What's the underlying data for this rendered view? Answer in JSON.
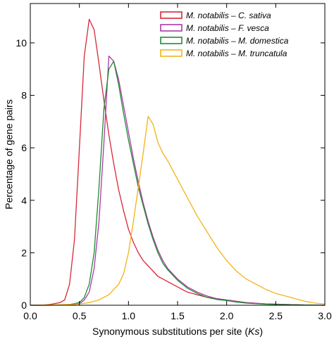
{
  "chart_data": {
    "type": "line",
    "title": "",
    "xlabel": "Synonymous substitutions per site (Ks)",
    "ylabel": "Percentage of gene pairs",
    "xlim": [
      0.0,
      3.0
    ],
    "ylim": [
      0,
      11.5
    ],
    "xticks": [
      "0.0",
      "0.5",
      "1.0",
      "1.5",
      "2.0",
      "2.5",
      "3.0"
    ],
    "yticks": [
      "0",
      "2",
      "4",
      "6",
      "8",
      "10"
    ],
    "grid": false,
    "legend_position": "top-right",
    "series": [
      {
        "name": "M. notabilis – C. sativa",
        "color": "#d62839",
        "x": [
          0.0,
          0.1,
          0.2,
          0.3,
          0.35,
          0.4,
          0.45,
          0.5,
          0.55,
          0.6,
          0.65,
          0.7,
          0.75,
          0.8,
          0.85,
          0.9,
          0.95,
          1.0,
          1.05,
          1.1,
          1.15,
          1.2,
          1.25,
          1.3,
          1.35,
          1.4,
          1.5,
          1.6,
          1.7,
          1.8,
          1.9,
          2.0,
          2.2,
          2.4,
          2.6,
          2.8,
          3.0
        ],
        "values": [
          0.0,
          0.0,
          0.03,
          0.1,
          0.2,
          0.8,
          2.5,
          6.0,
          9.5,
          10.9,
          10.5,
          9.2,
          7.8,
          6.5,
          5.4,
          4.4,
          3.6,
          2.9,
          2.4,
          2.0,
          1.7,
          1.5,
          1.3,
          1.1,
          1.0,
          0.9,
          0.7,
          0.5,
          0.4,
          0.3,
          0.25,
          0.2,
          0.1,
          0.05,
          0.03,
          0.01,
          0.0
        ]
      },
      {
        "name": "M. notabilis – F. vesca",
        "color": "#a83aa8",
        "x": [
          0.0,
          0.2,
          0.4,
          0.5,
          0.55,
          0.6,
          0.65,
          0.7,
          0.75,
          0.8,
          0.85,
          0.9,
          0.95,
          1.0,
          1.05,
          1.1,
          1.15,
          1.2,
          1.25,
          1.3,
          1.35,
          1.4,
          1.45,
          1.5,
          1.6,
          1.7,
          1.8,
          1.9,
          2.0,
          2.1,
          2.2,
          2.4,
          2.6,
          2.8,
          3.0
        ],
        "values": [
          0.0,
          0.0,
          0.02,
          0.05,
          0.2,
          0.5,
          1.4,
          3.2,
          6.2,
          9.5,
          9.3,
          8.6,
          7.6,
          6.6,
          5.6,
          4.7,
          3.9,
          3.2,
          2.6,
          2.1,
          1.7,
          1.4,
          1.2,
          1.0,
          0.7,
          0.5,
          0.35,
          0.25,
          0.2,
          0.15,
          0.1,
          0.05,
          0.03,
          0.01,
          0.0
        ]
      },
      {
        "name": "M. notabilis – M. domestica",
        "color": "#1f8c2e",
        "x": [
          0.0,
          0.2,
          0.4,
          0.5,
          0.55,
          0.6,
          0.65,
          0.7,
          0.75,
          0.8,
          0.85,
          0.9,
          0.95,
          1.0,
          1.05,
          1.1,
          1.15,
          1.2,
          1.25,
          1.3,
          1.35,
          1.4,
          1.45,
          1.5,
          1.6,
          1.7,
          1.8,
          1.9,
          2.0,
          2.1,
          2.2,
          2.4,
          2.6,
          2.8,
          3.0
        ],
        "values": [
          0.0,
          0.0,
          0.03,
          0.1,
          0.3,
          0.8,
          2.0,
          4.5,
          7.5,
          9.0,
          9.3,
          8.4,
          7.3,
          6.3,
          5.4,
          4.5,
          3.8,
          3.1,
          2.5,
          2.0,
          1.6,
          1.35,
          1.15,
          0.95,
          0.65,
          0.45,
          0.3,
          0.22,
          0.18,
          0.12,
          0.08,
          0.04,
          0.02,
          0.01,
          0.0
        ]
      },
      {
        "name": "M. notabilis – M. truncatula",
        "color": "#f2b319",
        "x": [
          0.0,
          0.3,
          0.5,
          0.6,
          0.7,
          0.8,
          0.85,
          0.9,
          0.95,
          1.0,
          1.05,
          1.1,
          1.15,
          1.2,
          1.25,
          1.3,
          1.35,
          1.4,
          1.5,
          1.6,
          1.7,
          1.8,
          1.9,
          2.0,
          2.1,
          2.2,
          2.3,
          2.4,
          2.5,
          2.6,
          2.7,
          2.8,
          2.9,
          3.0
        ],
        "values": [
          0.0,
          0.02,
          0.05,
          0.1,
          0.2,
          0.4,
          0.6,
          0.8,
          1.2,
          2.0,
          3.2,
          4.5,
          5.8,
          7.2,
          6.9,
          6.2,
          5.8,
          5.5,
          4.8,
          4.1,
          3.4,
          2.8,
          2.2,
          1.7,
          1.3,
          1.0,
          0.8,
          0.6,
          0.45,
          0.35,
          0.25,
          0.15,
          0.08,
          0.05
        ]
      }
    ]
  }
}
